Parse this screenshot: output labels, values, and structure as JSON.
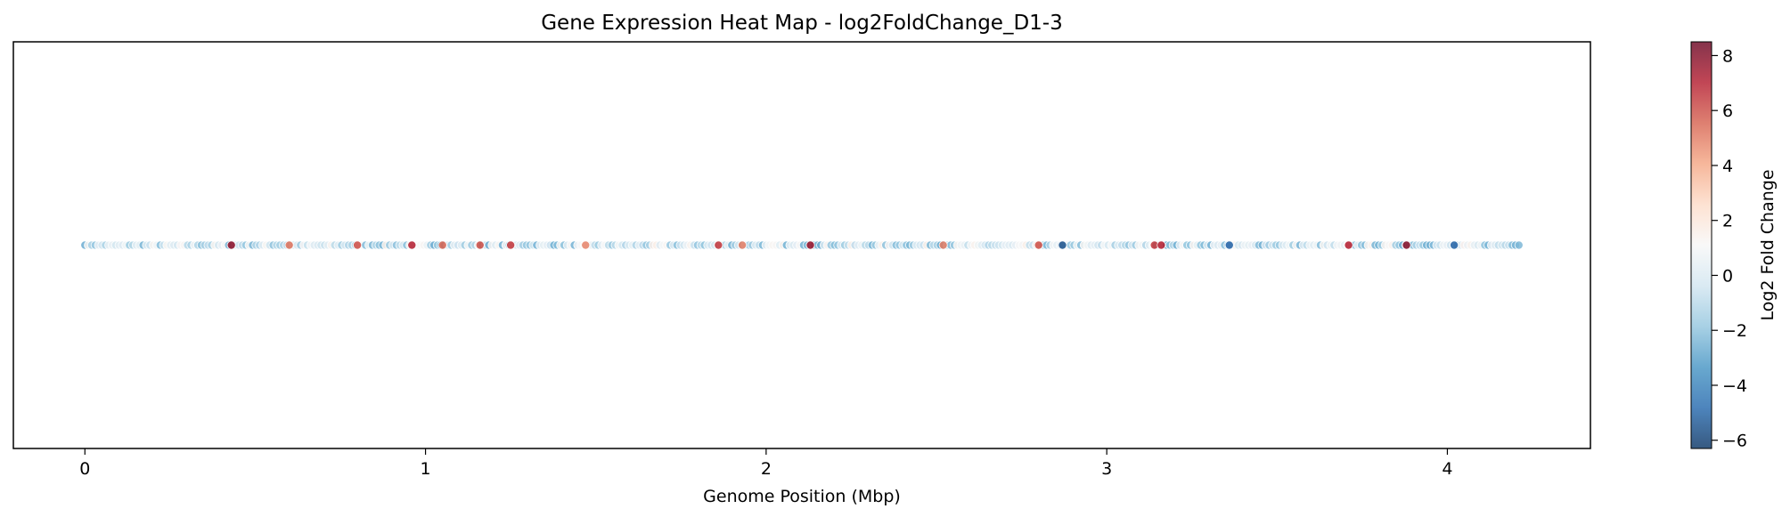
{
  "chart_data": {
    "type": "scatter",
    "title": "Gene Expression Heat Map - log2FoldChange_D1-3",
    "xlabel": "Genome Position (Mbp)",
    "ylabel": "",
    "xlim": [
      -0.21,
      4.42
    ],
    "xticks": [
      0,
      1,
      2,
      3,
      4
    ],
    "ylim": [
      0,
      2
    ],
    "y_value": 1,
    "grid": false,
    "x_start": 0.0,
    "x_end": 4.21,
    "point_count": 420,
    "highlighted_points": [
      {
        "x": 0.43,
        "v": 7.8
      },
      {
        "x": 0.6,
        "v": 5.2
      },
      {
        "x": 0.8,
        "v": 6.0
      },
      {
        "x": 0.96,
        "v": 7.0
      },
      {
        "x": 1.05,
        "v": 5.5
      },
      {
        "x": 1.16,
        "v": 6.0
      },
      {
        "x": 1.25,
        "v": 6.5
      },
      {
        "x": 1.47,
        "v": 4.8
      },
      {
        "x": 1.86,
        "v": 6.5
      },
      {
        "x": 1.93,
        "v": 5.0
      },
      {
        "x": 2.13,
        "v": 7.5
      },
      {
        "x": 2.52,
        "v": 5.0
      },
      {
        "x": 2.8,
        "v": 6.0
      },
      {
        "x": 2.87,
        "v": -5.5
      },
      {
        "x": 3.14,
        "v": 6.5
      },
      {
        "x": 3.16,
        "v": 7.0
      },
      {
        "x": 3.36,
        "v": -5.0
      },
      {
        "x": 3.71,
        "v": 7.0
      },
      {
        "x": 3.88,
        "v": 8.0
      },
      {
        "x": 4.02,
        "v": -5.0
      }
    ],
    "colorbar": {
      "label": "Log2 Fold Change",
      "min": -6.3,
      "max": 8.5,
      "ticks": [
        -6,
        -4,
        -2,
        0,
        2,
        4,
        6,
        8
      ],
      "tick_labels": [
        "−6",
        "−4",
        "−2",
        "0",
        "2",
        "4",
        "6",
        "8"
      ],
      "colormap": [
        "#053061",
        "#2166ac",
        "#4393c3",
        "#92c5de",
        "#d1e5f0",
        "#f7f7f7",
        "#fddbc7",
        "#f4a582",
        "#d6604d",
        "#b2182b",
        "#67001f"
      ],
      "color_center": 1.1
    }
  }
}
